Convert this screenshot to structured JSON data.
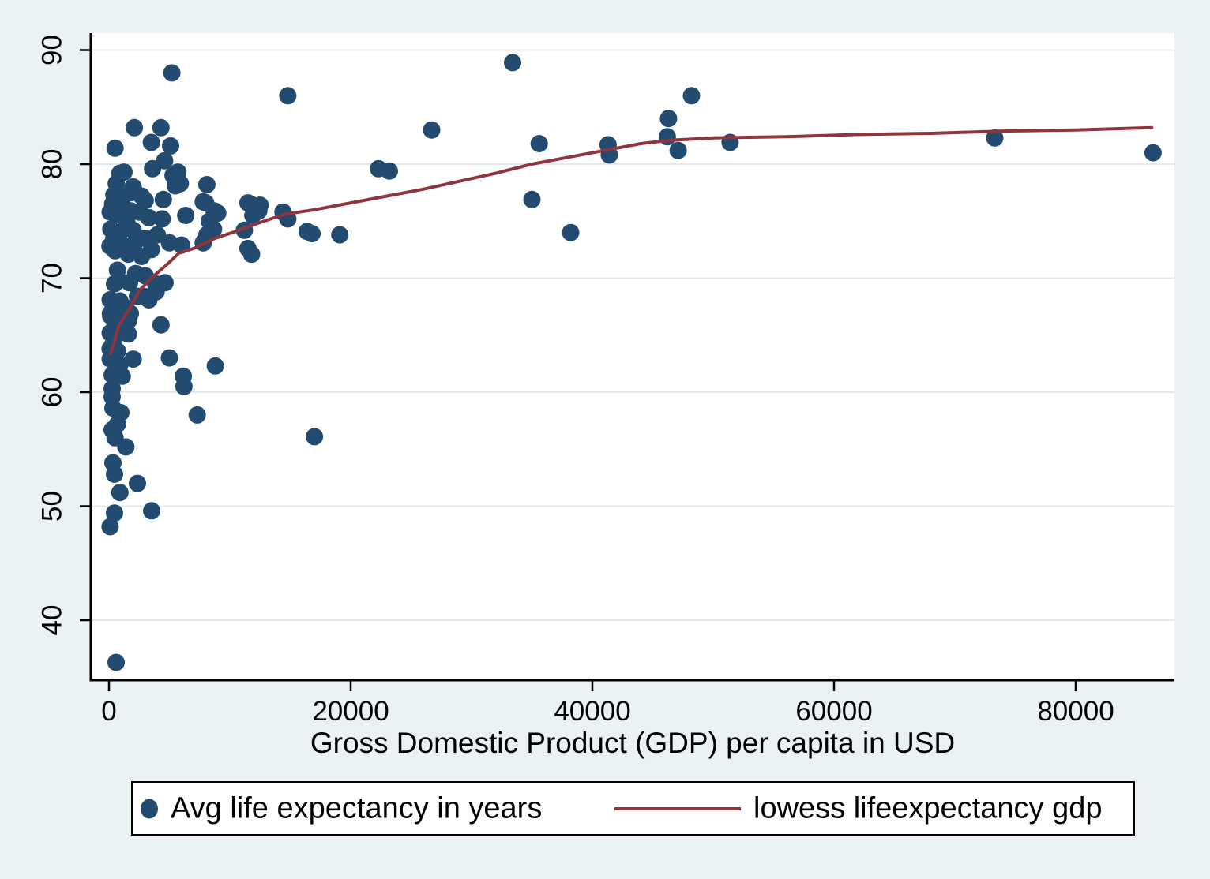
{
  "figure": {
    "background_color": "#eaf1f3",
    "plot_background_color": "#ffffff",
    "gridline_color": "#dfe9ee",
    "axis_color": "#000000"
  },
  "chart_data": {
    "type": "scatter",
    "title": "",
    "xlabel": "Gross Domestic Product (GDP) per capita in USD",
    "ylabel": "",
    "xlim": [
      -1500,
      88200
    ],
    "ylim": [
      34.7,
      91.5
    ],
    "x_ticks": [
      0,
      20000,
      40000,
      60000,
      80000
    ],
    "y_ticks": [
      40,
      50,
      60,
      70,
      80,
      90
    ],
    "grid": "horizontal",
    "legend_position": "bottom",
    "series": [
      {
        "name": "Avg life expectancy in years",
        "type": "scatter",
        "color": "#234b70",
        "marker_radius_px": 11,
        "points": [
          [
            5200,
            88.0
          ],
          [
            33400,
            88.9
          ],
          [
            14800,
            86.0
          ],
          [
            48200,
            86.0
          ],
          [
            46300,
            84.0
          ],
          [
            26700,
            83.0
          ],
          [
            2100,
            83.2
          ],
          [
            4300,
            83.2
          ],
          [
            500,
            81.4
          ],
          [
            3500,
            81.9
          ],
          [
            5100,
            81.6
          ],
          [
            4600,
            80.3
          ],
          [
            1240,
            79.3
          ],
          [
            3600,
            79.6
          ],
          [
            5700,
            79.3
          ],
          [
            22300,
            79.6
          ],
          [
            23200,
            79.4
          ],
          [
            35600,
            81.8
          ],
          [
            41300,
            81.7
          ],
          [
            41400,
            80.8
          ],
          [
            46200,
            82.4
          ],
          [
            47100,
            81.2
          ],
          [
            51400,
            81.9
          ],
          [
            73300,
            82.3
          ],
          [
            86400,
            81.0
          ],
          [
            35000,
            76.9
          ],
          [
            38200,
            74.0
          ],
          [
            17000,
            56.1
          ],
          [
            900,
            79.2
          ],
          [
            5300,
            79.0
          ],
          [
            5500,
            78.1
          ],
          [
            5900,
            78.3
          ],
          [
            8100,
            78.2
          ],
          [
            2000,
            78.0
          ],
          [
            600,
            78.3
          ],
          [
            400,
            77.3
          ],
          [
            1100,
            77.1
          ],
          [
            2700,
            77.2
          ],
          [
            4500,
            76.9
          ],
          [
            1800,
            77.5
          ],
          [
            3000,
            76.8
          ],
          [
            7800,
            76.7
          ],
          [
            8000,
            76.6
          ],
          [
            11700,
            76.5
          ],
          [
            12400,
            75.9
          ],
          [
            11500,
            76.6
          ],
          [
            12500,
            76.4
          ],
          [
            100,
            75.8
          ],
          [
            700,
            75.6
          ],
          [
            1800,
            75.9
          ],
          [
            300,
            76.5
          ],
          [
            1200,
            76.2
          ],
          [
            2500,
            75.8
          ],
          [
            3300,
            75.3
          ],
          [
            4400,
            75.2
          ],
          [
            6350,
            75.5
          ],
          [
            8700,
            75.9
          ],
          [
            9000,
            75.7
          ],
          [
            8300,
            75.0
          ],
          [
            11900,
            75.5
          ],
          [
            14400,
            75.8
          ],
          [
            14800,
            75.2
          ],
          [
            150,
            74.3
          ],
          [
            900,
            74.0
          ],
          [
            2000,
            74.2
          ],
          [
            1500,
            74.8
          ],
          [
            3000,
            73.5
          ],
          [
            4000,
            73.8
          ],
          [
            5000,
            73.1
          ],
          [
            6000,
            72.9
          ],
          [
            80,
            72.8
          ],
          [
            500,
            72.4
          ],
          [
            1600,
            72.1
          ],
          [
            2700,
            71.9
          ],
          [
            400,
            73.5
          ],
          [
            2200,
            73.2
          ],
          [
            3500,
            72.5
          ],
          [
            1000,
            73.0
          ],
          [
            8650,
            74.3
          ],
          [
            8100,
            73.8
          ],
          [
            7800,
            73.1
          ],
          [
            11200,
            74.2
          ],
          [
            11500,
            72.6
          ],
          [
            11800,
            72.1
          ],
          [
            16400,
            74.1
          ],
          [
            16800,
            73.9
          ],
          [
            19100,
            73.8
          ],
          [
            700,
            70.7
          ],
          [
            2200,
            70.4
          ],
          [
            800,
            69.8
          ],
          [
            460,
            69.5
          ],
          [
            1700,
            69.6
          ],
          [
            3000,
            70.2
          ],
          [
            3860,
            69.5
          ],
          [
            4640,
            69.6
          ],
          [
            460,
            67.9
          ],
          [
            130,
            66.7
          ],
          [
            1400,
            67.4
          ],
          [
            1630,
            66.3
          ],
          [
            2900,
            68.4
          ],
          [
            3900,
            68.8
          ],
          [
            100,
            68.1
          ],
          [
            900,
            68.0
          ],
          [
            2350,
            68.4
          ],
          [
            3300,
            68.1
          ],
          [
            120,
            66.9
          ],
          [
            700,
            66.6
          ],
          [
            1770,
            66.9
          ],
          [
            460,
            65.7
          ],
          [
            330,
            64.2
          ],
          [
            4300,
            65.9
          ],
          [
            100,
            65.2
          ],
          [
            600,
            65.0
          ],
          [
            1600,
            65.1
          ],
          [
            90,
            63.8
          ],
          [
            700,
            63.6
          ],
          [
            100,
            62.9
          ],
          [
            900,
            62.4
          ],
          [
            2000,
            62.9
          ],
          [
            5000,
            63.0
          ],
          [
            8800,
            62.3
          ],
          [
            260,
            61.5
          ],
          [
            1100,
            61.4
          ],
          [
            6150,
            61.4
          ],
          [
            260,
            60.3
          ],
          [
            6200,
            60.5
          ],
          [
            260,
            59.6
          ],
          [
            330,
            58.6
          ],
          [
            980,
            58.2
          ],
          [
            7300,
            58.0
          ],
          [
            260,
            56.7
          ],
          [
            700,
            57.2
          ],
          [
            500,
            56.0
          ],
          [
            1400,
            55.2
          ],
          [
            330,
            53.8
          ],
          [
            460,
            52.8
          ],
          [
            2350,
            52.0
          ],
          [
            900,
            51.2
          ],
          [
            3530,
            49.6
          ],
          [
            460,
            49.4
          ],
          [
            90,
            48.2
          ],
          [
            590,
            36.3
          ]
        ]
      },
      {
        "name": "lowess lifeexpectancy gdp",
        "type": "line",
        "color": "#90353b",
        "stroke_width_px": 4,
        "points": [
          [
            150,
            63.4
          ],
          [
            300,
            63.9
          ],
          [
            500,
            64.7
          ],
          [
            800,
            65.8
          ],
          [
            1200,
            66.5
          ],
          [
            1700,
            67.3
          ],
          [
            2500,
            68.9
          ],
          [
            3600,
            70.1
          ],
          [
            4900,
            71.3
          ],
          [
            5800,
            72.2
          ],
          [
            7000,
            72.6
          ],
          [
            8800,
            73.5
          ],
          [
            10500,
            74.1
          ],
          [
            12000,
            74.7
          ],
          [
            14500,
            75.6
          ],
          [
            17000,
            76.0
          ],
          [
            20000,
            76.6
          ],
          [
            23000,
            77.2
          ],
          [
            26000,
            77.8
          ],
          [
            29000,
            78.5
          ],
          [
            32000,
            79.2
          ],
          [
            35000,
            80.0
          ],
          [
            38000,
            80.6
          ],
          [
            41000,
            81.2
          ],
          [
            44000,
            81.8
          ],
          [
            46500,
            82.1
          ],
          [
            50000,
            82.3
          ],
          [
            56000,
            82.4
          ],
          [
            62000,
            82.6
          ],
          [
            68000,
            82.7
          ],
          [
            74000,
            82.9
          ],
          [
            80000,
            83.0
          ],
          [
            86300,
            83.2
          ]
        ]
      }
    ]
  },
  "legend": {
    "items": [
      {
        "label": "Avg life expectancy in years",
        "swatch": "navy-dot"
      },
      {
        "label": "lowess lifeexpectancy gdp",
        "swatch": "maroon-line"
      }
    ]
  }
}
